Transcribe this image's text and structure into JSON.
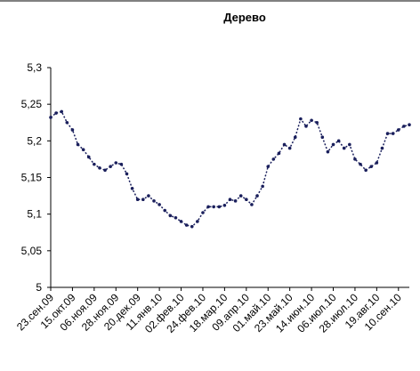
{
  "chart_data": {
    "type": "line",
    "title": "Дерево",
    "categories": [
      "23.сен.09",
      null,
      null,
      null,
      "15.окт.09",
      null,
      null,
      null,
      "06.ноя.09",
      null,
      null,
      null,
      "28.ноя.09",
      null,
      null,
      null,
      "20.дек.09",
      null,
      null,
      null,
      "11.янв.10",
      null,
      null,
      null,
      "02.фев.10",
      null,
      null,
      null,
      "24.фев.10",
      null,
      null,
      null,
      "18.мар.10",
      null,
      null,
      null,
      "09.апр.10",
      null,
      null,
      null,
      "01.май.10",
      null,
      null,
      null,
      "23.май.10",
      null,
      null,
      null,
      "14.июн.10",
      null,
      null,
      null,
      "06.июл.10",
      null,
      null,
      null,
      "28.июл.10",
      null,
      null,
      null,
      "19.авг.10",
      null,
      null,
      null,
      "10.сен.10",
      null,
      null
    ],
    "values": [
      5.232,
      5.238,
      5.24,
      5.225,
      5.215,
      5.195,
      5.188,
      5.178,
      5.168,
      5.163,
      5.16,
      5.165,
      5.17,
      5.168,
      5.155,
      5.135,
      5.12,
      5.12,
      5.125,
      5.118,
      5.113,
      5.105,
      5.098,
      5.095,
      5.09,
      5.085,
      5.083,
      5.09,
      5.102,
      5.11,
      5.11,
      5.11,
      5.112,
      5.12,
      5.118,
      5.125,
      5.12,
      5.113,
      5.125,
      5.138,
      5.165,
      5.175,
      5.183,
      5.195,
      5.19,
      5.205,
      5.23,
      5.22,
      5.228,
      5.225,
      5.205,
      5.185,
      5.195,
      5.2,
      5.19,
      5.195,
      5.175,
      5.168,
      5.16,
      5.165,
      5.17,
      5.19,
      5.21,
      5.21,
      5.215,
      5.22,
      5.222
    ],
    "color": "#1a1f5c",
    "ylim": [
      5,
      5.3
    ],
    "yticks": [
      5,
      {
        "value": 5.05,
        "label": "5,05"
      },
      {
        "value": 5.1,
        "label": "5,1"
      },
      {
        "value": 5.15,
        "label": "5,15"
      },
      {
        "value": 5.2,
        "label": "5,2"
      },
      {
        "value": 5.25,
        "label": "5,25"
      },
      {
        "value": 5.3,
        "label": "5,3"
      }
    ]
  }
}
